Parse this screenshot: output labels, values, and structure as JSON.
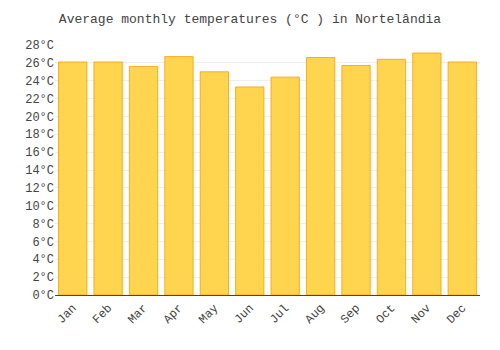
{
  "chart_data": {
    "type": "bar",
    "title": "Average monthly temperatures (°C ) in Nortelândia",
    "categories": [
      "Jan",
      "Feb",
      "Mar",
      "Apr",
      "May",
      "Jun",
      "Jul",
      "Aug",
      "Sep",
      "Oct",
      "Nov",
      "Dec"
    ],
    "values": [
      26.1,
      26.1,
      25.6,
      26.7,
      25.0,
      23.3,
      24.4,
      26.6,
      25.7,
      26.4,
      27.1,
      26.1
    ],
    "color": "#FFD54F",
    "ylim": [
      0,
      28
    ],
    "yticks": [
      {
        "value": 0,
        "label": "0°C"
      },
      {
        "value": 2,
        "label": "2°C"
      },
      {
        "value": 4,
        "label": "4°C"
      },
      {
        "value": 6,
        "label": "6°C"
      },
      {
        "value": 8,
        "label": "8°C"
      },
      {
        "value": 10,
        "label": "10°C"
      },
      {
        "value": 12,
        "label": "12°C"
      },
      {
        "value": 14,
        "label": "14°C"
      },
      {
        "value": 16,
        "label": "16°C"
      },
      {
        "value": 18,
        "label": "18°C"
      },
      {
        "value": 20,
        "label": "20°C"
      },
      {
        "value": 22,
        "label": "22°C"
      },
      {
        "value": 24,
        "label": "24°C"
      },
      {
        "value": 26,
        "label": "26°C"
      },
      {
        "value": 28,
        "label": "28°C"
      }
    ],
    "grid": true
  }
}
